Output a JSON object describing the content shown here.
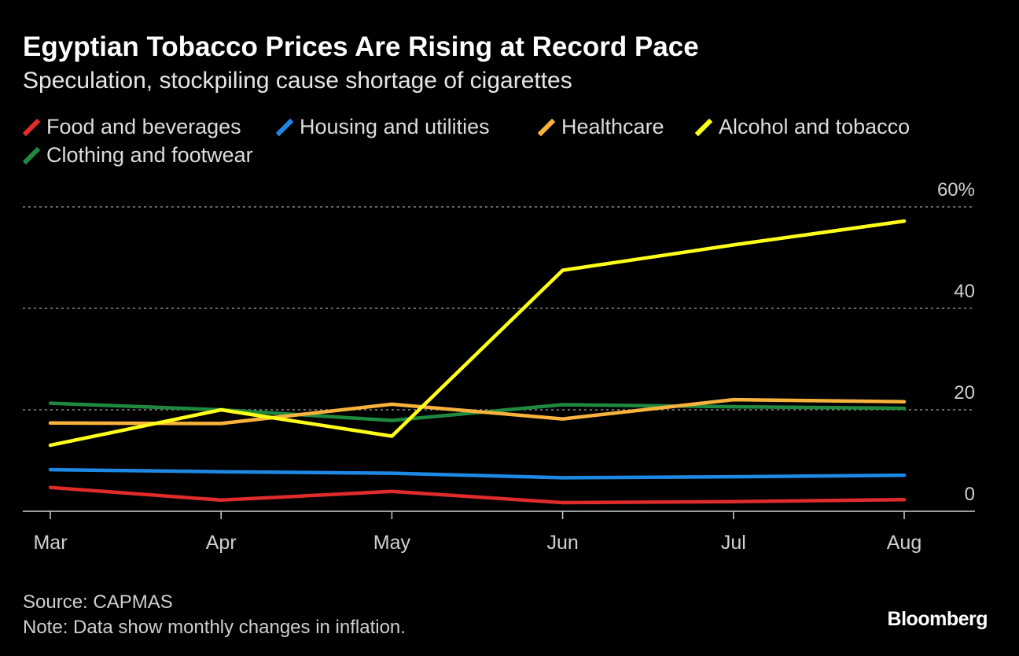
{
  "header": {
    "title": "Egyptian Tobacco Prices Are Rising at Record Pace",
    "subtitle": "Speculation, stockpiling cause shortage of cigarettes"
  },
  "legend": [
    {
      "label": "Food and beverages",
      "color": "#e02b2b"
    },
    {
      "label": "Housing and utilities",
      "color": "#1e88e5"
    },
    {
      "label": "Healthcare",
      "color": "#f9b23c"
    },
    {
      "label": "Alcohol and tobacco",
      "color": "#ffff1a"
    },
    {
      "label": "Clothing and footwear",
      "color": "#1f8a3f"
    }
  ],
  "chart_data": {
    "type": "line",
    "x": [
      "Mar",
      "Apr",
      "May",
      "Jun",
      "Jul",
      "Aug"
    ],
    "ylim": [
      0,
      60
    ],
    "y_ticks": [
      0,
      20,
      40,
      60
    ],
    "y_tick_labels": [
      "0",
      "20",
      "40",
      "60%"
    ],
    "y_axis_side": "right",
    "grid": true,
    "series": [
      {
        "name": "Food and beverages",
        "color": "#e02b2b",
        "values": [
          4.7,
          2.2,
          3.9,
          1.7,
          1.9,
          2.3
        ]
      },
      {
        "name": "Housing and utilities",
        "color": "#1e88e5",
        "values": [
          8.2,
          7.8,
          7.5,
          6.6,
          6.8,
          7.1
        ]
      },
      {
        "name": "Healthcare",
        "color": "#f9b23c",
        "values": [
          17.4,
          17.3,
          21.1,
          18.2,
          22.0,
          21.6
        ]
      },
      {
        "name": "Alcohol and tobacco",
        "color": "#ffff1a",
        "values": [
          13.0,
          20.0,
          14.8,
          47.5,
          52.5,
          57.2
        ]
      },
      {
        "name": "Clothing and footwear",
        "color": "#1f8a3f",
        "values": [
          21.3,
          20.0,
          17.9,
          21.0,
          20.6,
          20.3
        ]
      }
    ]
  },
  "footer": {
    "source": "Source: CAPMAS",
    "note": "Note: Data show monthly changes in inflation."
  },
  "branding": {
    "logo": "Bloomberg"
  }
}
